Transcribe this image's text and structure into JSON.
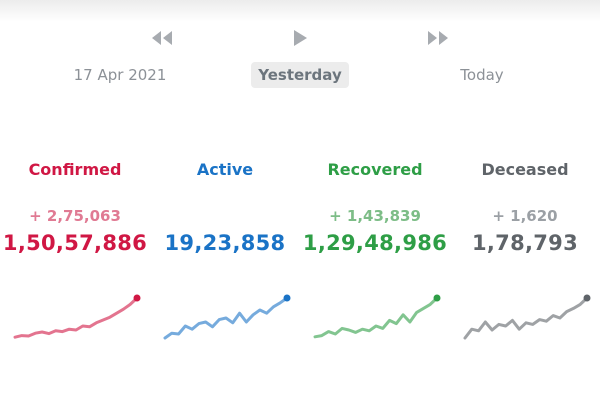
{
  "timeline": {
    "rewind_icon": "rewind-icon",
    "play_icon": "play-icon",
    "forward_icon": "fast-forward-icon",
    "dates": [
      "17 Apr 2021",
      "Yesterday",
      "Today"
    ],
    "selected": "Yesterday"
  },
  "stats": [
    {
      "label": "Confirmed",
      "delta": "+ 2,75,063",
      "total": "1,50,57,886",
      "color": "#d01744",
      "delta_color": "#e07a93",
      "trend": [
        0.02,
        0.06,
        0.05,
        0.12,
        0.15,
        0.11,
        0.18,
        0.16,
        0.22,
        0.2,
        0.3,
        0.28,
        0.38,
        0.45,
        0.52,
        0.62,
        0.72,
        0.84,
        1.0
      ]
    },
    {
      "label": "Active",
      "delta": "",
      "total": "19,23,858",
      "color": "#1a73c6",
      "delta_color": "#1a73c6",
      "trend": [
        0.0,
        0.12,
        0.1,
        0.3,
        0.22,
        0.36,
        0.4,
        0.28,
        0.46,
        0.5,
        0.38,
        0.62,
        0.4,
        0.58,
        0.7,
        0.62,
        0.78,
        0.88,
        1.0
      ]
    },
    {
      "label": "Recovered",
      "delta": "+ 1,43,839",
      "total": "1,29,48,986",
      "color": "#2e9e46",
      "delta_color": "#7dbd87",
      "trend": [
        0.03,
        0.06,
        0.16,
        0.1,
        0.24,
        0.2,
        0.14,
        0.22,
        0.18,
        0.3,
        0.24,
        0.44,
        0.36,
        0.58,
        0.4,
        0.64,
        0.74,
        0.84,
        1.0
      ]
    },
    {
      "label": "Deceased",
      "delta": "+ 1,620",
      "total": "1,78,793",
      "color": "#5f6469",
      "delta_color": "#9ba0a5",
      "trend": [
        0.0,
        0.22,
        0.18,
        0.4,
        0.2,
        0.34,
        0.3,
        0.44,
        0.22,
        0.38,
        0.34,
        0.46,
        0.42,
        0.56,
        0.5,
        0.66,
        0.74,
        0.84,
        1.0
      ]
    }
  ]
}
